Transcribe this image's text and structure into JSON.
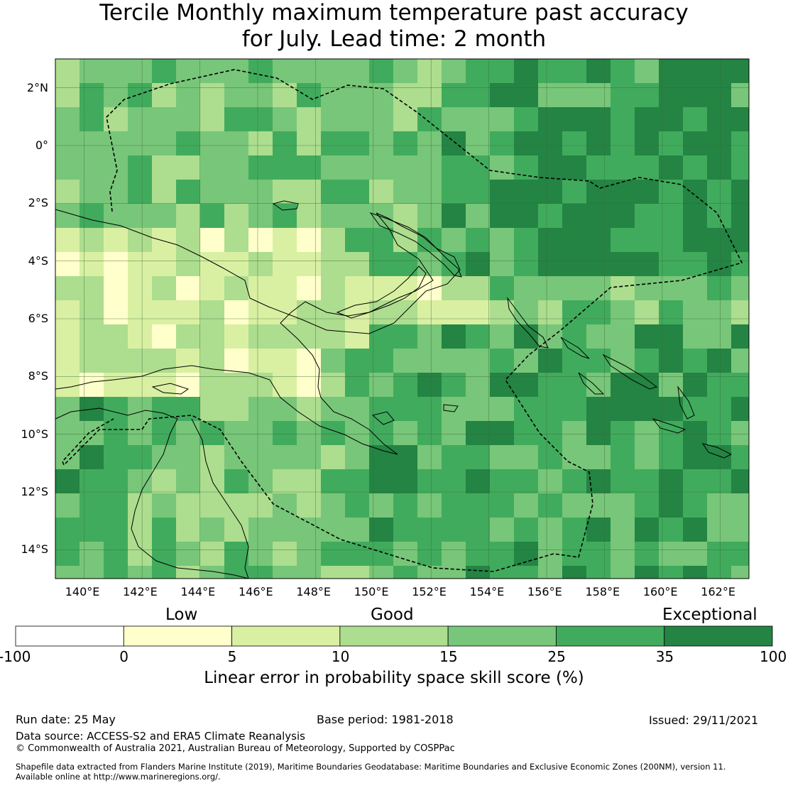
{
  "title": {
    "line1": "Tercile Monthly maximum temperature past accuracy",
    "line2": "for July. Lead time: 2 month"
  },
  "axes": {
    "lon_labels": [
      "140°E",
      "142°E",
      "144°E",
      "146°E",
      "148°E",
      "150°E",
      "152°E",
      "154°E",
      "156°E",
      "158°E",
      "160°E",
      "162°E"
    ],
    "lat_labels": [
      "2°N",
      "0°",
      "2°S",
      "4°S",
      "6°S",
      "8°S",
      "10°S",
      "12°S",
      "14°S"
    ],
    "lon_range": [
      139,
      163
    ],
    "lat_range": [
      -15,
      3
    ]
  },
  "colorbar": {
    "categories": {
      "low": "Low",
      "good": "Good",
      "exceptional": "Exceptional"
    },
    "ticks": [
      "-100",
      "0",
      "5",
      "10",
      "15",
      "25",
      "35",
      "100"
    ],
    "colors": [
      "#ffffff",
      "#ffffcc",
      "#d9f0a3",
      "#addd8e",
      "#78c679",
      "#41ab5d",
      "#238443"
    ],
    "label": "Linear error in probability space skill score (%)"
  },
  "footer": {
    "run_date": "Run date: 25 May",
    "base_period": "Base period: 1981-2018",
    "issued": "Issued: 29/11/2021",
    "data_source": "Data source: ACCESS-S2 and ERA5 Climate Reanalysis",
    "copyright": "© Commonwealth of Australia 2021, Australian Bureau of Meteorology, Supported by COSPPac",
    "shapefile_line1": "Shapefile data extracted from Flanders Marine Institute (2019), Maritime Boundaries Geodatabase: Maritime Boundaries and Exclusive Economic Zones (200NM), version 11.",
    "shapefile_line2": "Available online at http://www.marineregions.org/."
  }
}
